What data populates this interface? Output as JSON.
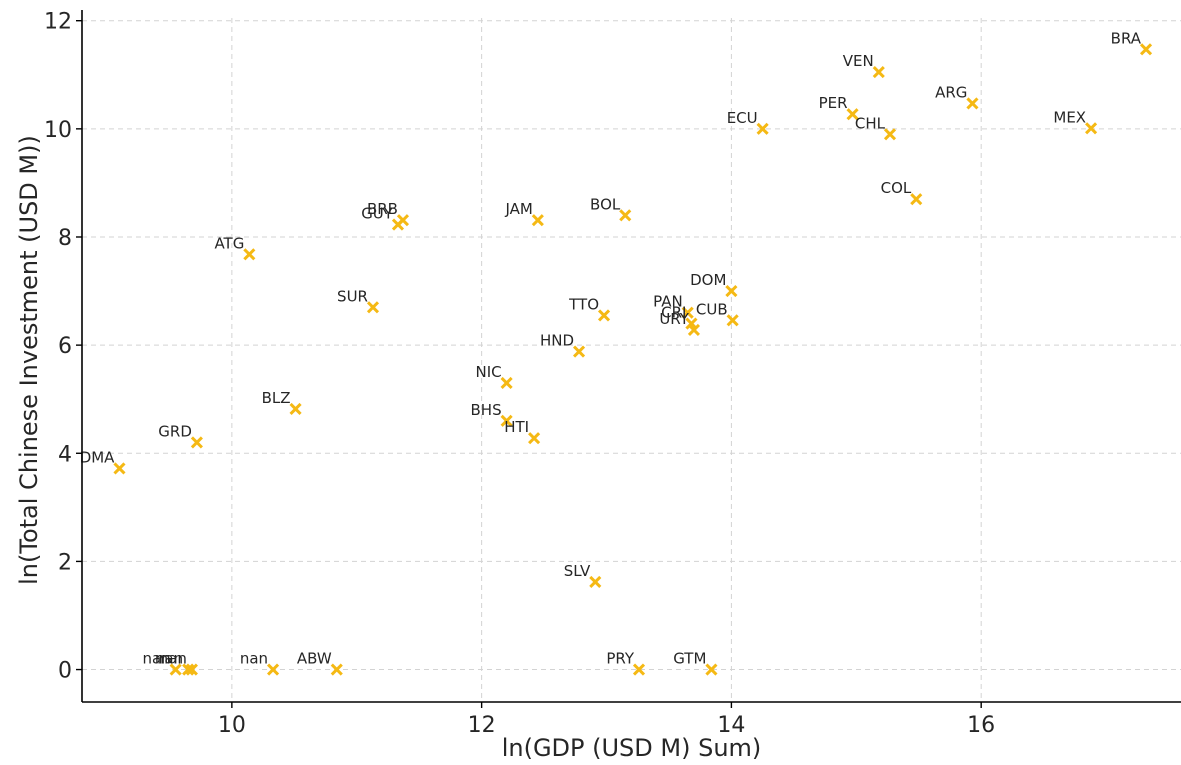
{
  "chart_data": {
    "type": "scatter",
    "title": "",
    "xlabel": "ln(GDP (USD M) Sum)",
    "ylabel": "ln(Total Chinese Investment (USD M))",
    "xlim": [
      8.8,
      17.6
    ],
    "ylim": [
      -0.6,
      12.05
    ],
    "xticks": [
      10,
      12,
      14,
      16
    ],
    "yticks": [
      0,
      2,
      4,
      6,
      8,
      10,
      12
    ],
    "grid": true,
    "marker": "x",
    "marker_color": "#f5b914",
    "points": [
      {
        "label": "BRA",
        "x": 17.32,
        "y": 11.47
      },
      {
        "label": "VEN",
        "x": 15.18,
        "y": 11.05
      },
      {
        "label": "ARG",
        "x": 15.93,
        "y": 10.47
      },
      {
        "label": "PER",
        "x": 14.97,
        "y": 10.27
      },
      {
        "label": "MEX",
        "x": 16.88,
        "y": 10.01
      },
      {
        "label": "ECU",
        "x": 14.25,
        "y": 10.0
      },
      {
        "label": "CHL",
        "x": 15.27,
        "y": 9.9
      },
      {
        "label": "COL",
        "x": 15.48,
        "y": 8.7
      },
      {
        "label": "BOL",
        "x": 13.15,
        "y": 8.4
      },
      {
        "label": "JAM",
        "x": 12.45,
        "y": 8.31
      },
      {
        "label": "BRB",
        "x": 11.37,
        "y": 8.31
      },
      {
        "label": "GUY",
        "x": 11.33,
        "y": 8.23
      },
      {
        "label": "ATG",
        "x": 10.14,
        "y": 7.68
      },
      {
        "label": "DOM",
        "x": 14.0,
        "y": 7.0
      },
      {
        "label": "SUR",
        "x": 11.13,
        "y": 6.7
      },
      {
        "label": "TTO",
        "x": 12.98,
        "y": 6.55
      },
      {
        "label": "PAN",
        "x": 13.65,
        "y": 6.6
      },
      {
        "label": "CRI",
        "x": 13.68,
        "y": 6.4
      },
      {
        "label": "CUB",
        "x": 14.01,
        "y": 6.46
      },
      {
        "label": "URY",
        "x": 13.7,
        "y": 6.28
      },
      {
        "label": "HND",
        "x": 12.78,
        "y": 5.88
      },
      {
        "label": "NIC",
        "x": 12.2,
        "y": 5.3
      },
      {
        "label": "BLZ",
        "x": 10.51,
        "y": 4.82
      },
      {
        "label": "BHS",
        "x": 12.2,
        "y": 4.6
      },
      {
        "label": "HTI",
        "x": 12.42,
        "y": 4.28
      },
      {
        "label": "GRD",
        "x": 9.72,
        "y": 4.2
      },
      {
        "label": "DMA",
        "x": 9.1,
        "y": 3.72
      },
      {
        "label": "SLV",
        "x": 12.91,
        "y": 1.62
      },
      {
        "label": "nan",
        "x": 9.55,
        "y": 0.0
      },
      {
        "label": "nan",
        "x": 9.65,
        "y": 0.0
      },
      {
        "label": "nan",
        "x": 9.68,
        "y": 0.0
      },
      {
        "label": "nan",
        "x": 10.33,
        "y": 0.0
      },
      {
        "label": "ABW",
        "x": 10.84,
        "y": 0.0
      },
      {
        "label": "PRY",
        "x": 13.26,
        "y": 0.0
      },
      {
        "label": "GTM",
        "x": 13.84,
        "y": 0.0
      }
    ]
  }
}
